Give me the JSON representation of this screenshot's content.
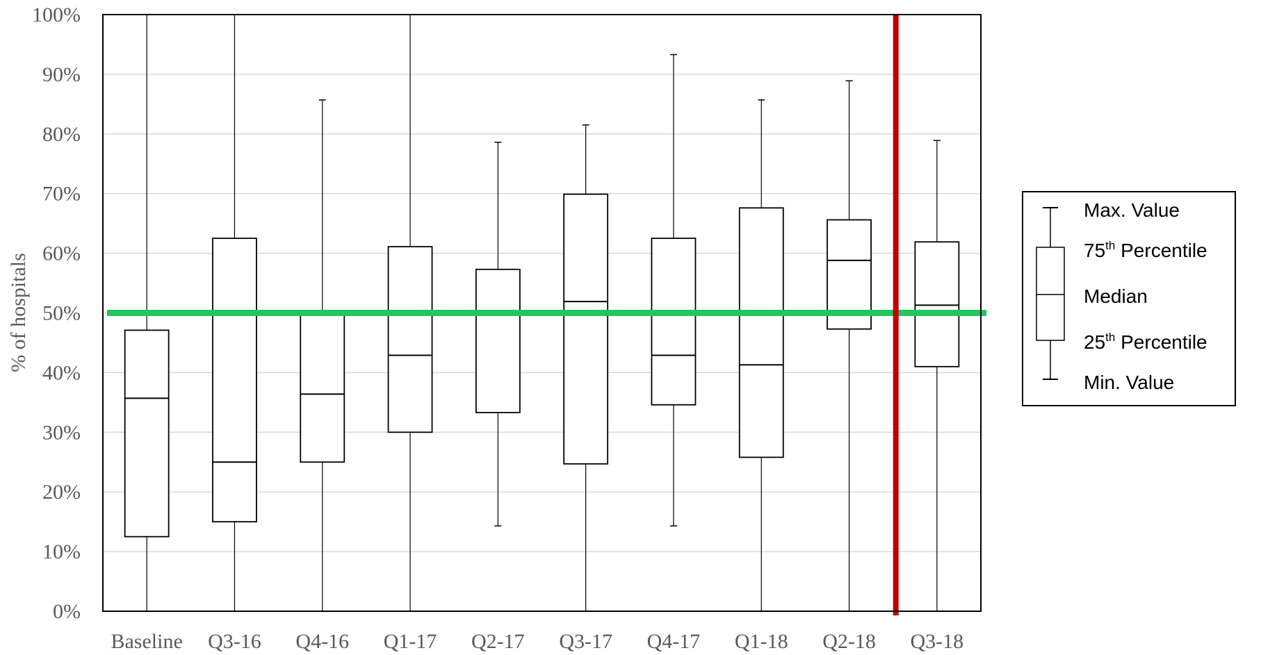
{
  "chart_data": {
    "type": "boxplot",
    "ylabel": "% of hospitals",
    "ylim": [
      0,
      100
    ],
    "y_ticks": [
      "0%",
      "10%",
      "20%",
      "30%",
      "40%",
      "50%",
      "60%",
      "70%",
      "80%",
      "90%",
      "100%"
    ],
    "grid": true,
    "categories": [
      "Baseline",
      "Q3-16",
      "Q4-16",
      "Q1-17",
      "Q2-17",
      "Q3-17",
      "Q4-17",
      "Q1-18",
      "Q2-18",
      "Q3-18"
    ],
    "series": [
      {
        "min": 0,
        "q1": 12.5,
        "median": 35.7,
        "q3": 47.1,
        "max": 100
      },
      {
        "min": 0,
        "q1": 15.0,
        "median": 25.0,
        "q3": 62.5,
        "max": 100
      },
      {
        "min": 0,
        "q1": 25.0,
        "median": 36.4,
        "q3": 50.0,
        "max": 85.7
      },
      {
        "min": 0,
        "q1": 30.0,
        "median": 42.9,
        "q3": 61.1,
        "max": 100
      },
      {
        "min": 14.3,
        "q1": 33.3,
        "median": 50.0,
        "q3": 57.3,
        "max": 78.6
      },
      {
        "min": 0,
        "q1": 24.7,
        "median": 51.9,
        "q3": 69.9,
        "max": 81.5
      },
      {
        "min": 14.3,
        "q1": 34.6,
        "median": 42.9,
        "q3": 62.5,
        "max": 93.3
      },
      {
        "min": 0,
        "q1": 25.8,
        "median": 41.3,
        "q3": 67.6,
        "max": 85.7
      },
      {
        "min": 0,
        "q1": 47.3,
        "median": 58.8,
        "q3": 65.6,
        "max": 88.9
      },
      {
        "min": 0,
        "q1": 41.0,
        "median": 51.3,
        "q3": 61.9,
        "max": 78.9
      }
    ],
    "reference_line": {
      "value": 50,
      "color": "#22c55e"
    },
    "vertical_marker": {
      "between": [
        "Q2-18",
        "Q3-18"
      ],
      "color": "#c00000"
    },
    "legend": {
      "position": "right",
      "items": [
        {
          "text": "Max. Value",
          "sup": ""
        },
        {
          "text": "75",
          "sup": "th",
          "rest": " Percentile"
        },
        {
          "text": "Median",
          "sup": ""
        },
        {
          "text": "25",
          "sup": "th",
          "rest": " Percentile"
        },
        {
          "text": "Min. Value",
          "sup": ""
        }
      ]
    }
  }
}
